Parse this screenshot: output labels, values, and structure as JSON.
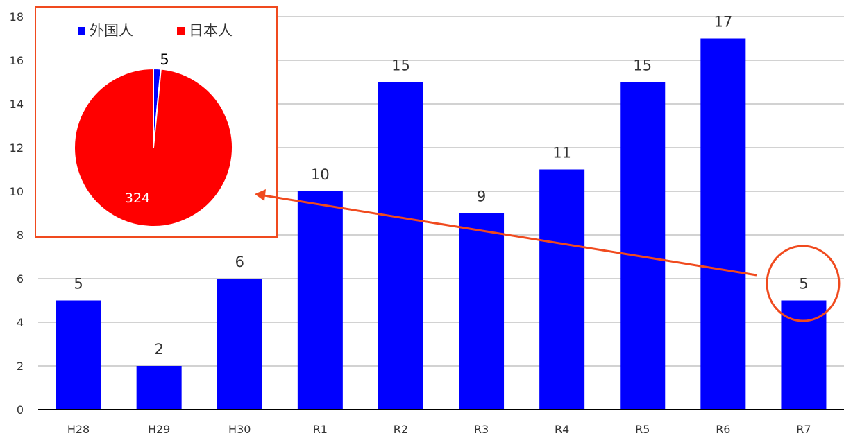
{
  "chart_data": [
    {
      "type": "bar",
      "categories": [
        "H28",
        "H29",
        "H30",
        "R1",
        "R2",
        "R3",
        "R4",
        "R5",
        "R6",
        "R7"
      ],
      "values": [
        5,
        2,
        6,
        10,
        15,
        9,
        11,
        15,
        17,
        5
      ],
      "data_labels": [
        "5",
        "2",
        "6",
        "10",
        "15",
        "9",
        "11",
        "15",
        "17",
        "5"
      ],
      "ylim": [
        0,
        18
      ],
      "yticks": [
        0,
        2,
        4,
        6,
        8,
        10,
        12,
        14,
        16,
        18
      ],
      "grid": true,
      "bar_color": "#0000ff",
      "highlighted_category": "R7",
      "annotation_color": "#f04a1e"
    },
    {
      "type": "pie",
      "legend": [
        {
          "label": "外国人",
          "color": "#0000ff"
        },
        {
          "label": "日本人",
          "color": "#ff0000"
        }
      ],
      "legend_position": "top",
      "slices": [
        {
          "label": "外国人",
          "value": 5,
          "value_label": "5",
          "color": "#0000ff"
        },
        {
          "label": "日本人",
          "value": 324,
          "value_label": "324",
          "color": "#ff0000"
        }
      ],
      "inset_border_color": "#f04a1e"
    }
  ]
}
